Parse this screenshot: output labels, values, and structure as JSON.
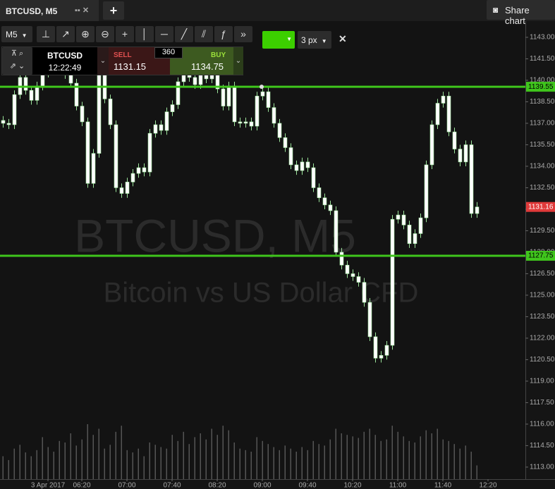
{
  "tab": {
    "title": "BTCUSD, M5",
    "add": "+",
    "share": "Share chart"
  },
  "toolbar": {
    "timeframe": "M5",
    "line_width": "3 px"
  },
  "ticket": {
    "symbol": "BTCUSD",
    "time": "12:22:49",
    "sell_label": "SELL",
    "sell_price": "1131.15",
    "spread": "360",
    "buy_label": "BUY",
    "buy_price": "1134.75"
  },
  "chart_data": {
    "type": "candlestick",
    "title": "BTCUSD, M5",
    "subtitle": "Bitcoin vs US Dollar CFD",
    "categories": [
      null,
      null,
      null,
      null,
      null,
      null,
      null,
      null,
      "3 Apr 2017",
      null,
      null,
      null,
      null,
      null,
      "06:20",
      null,
      null,
      null,
      null,
      null,
      null,
      null,
      "07:00",
      null,
      null,
      null,
      null,
      null,
      null,
      null,
      "07:40",
      null,
      null,
      null,
      null,
      null,
      null,
      null,
      "08:20",
      null,
      null,
      null,
      null,
      null,
      null,
      null,
      "09:00",
      null,
      null,
      null,
      null,
      null,
      null,
      null,
      "09:40",
      null,
      null,
      null,
      null,
      null,
      null,
      null,
      "10:20",
      null,
      null,
      null,
      null,
      null,
      null,
      null,
      "11:00",
      null,
      null,
      null,
      null,
      null,
      null,
      null,
      "11:40",
      null,
      null,
      null,
      null,
      null,
      null,
      null,
      "12:20"
    ],
    "open": [
      1137.2,
      1137.0,
      1136.9,
      1139.0,
      1140.2,
      1139.3,
      1138.6,
      1139.6,
      1140.5,
      1140.8,
      1141.2,
      1140.9,
      1140.4,
      1139.8,
      1138.2,
      1137.1,
      1132.8,
      1134.9,
      1140.6,
      1138.7,
      1136.9,
      1132.5,
      1132.1,
      1132.9,
      1133.5,
      1133.9,
      1133.6,
      1136.3,
      1136.9,
      1136.5,
      1137.8,
      1138.3,
      1139.9,
      1140.4,
      1140.2,
      1139.7,
      1140.6,
      1140.1,
      1140.8,
      1139.4,
      1138.2,
      1139.6,
      1137.1,
      1137.0,
      1137.1,
      1136.8,
      1138.9,
      1139.2,
      1138.1,
      1137.0,
      1136.0,
      1135.3,
      1134.1,
      1133.7,
      1134.3,
      1133.9,
      1132.5,
      1131.8,
      1131.3,
      1130.9,
      1128.0,
      1127.1,
      1126.5,
      1126.3,
      1125.9,
      1124.5,
      1122.1,
      1120.6,
      1120.8,
      1121.5,
      1130.3,
      1130.6,
      1129.9,
      1128.6,
      1129.3,
      1130.4,
      1134.1,
      1136.9,
      1138.4,
      1138.9,
      1136.4,
      1135.2,
      1134.3,
      1135.5,
      1130.7,
      null,
      null
    ],
    "high": [
      1137.5,
      1137.3,
      1139.3,
      1140.5,
      1140.5,
      1139.6,
      1139.9,
      1140.8,
      1141.1,
      1141.5,
      1141.5,
      1141.2,
      1140.7,
      1140.1,
      1138.5,
      1137.4,
      1135.2,
      1140.9,
      1140.9,
      1139.0,
      1137.2,
      1132.8,
      1133.2,
      1133.8,
      1134.2,
      1134.2,
      1136.6,
      1137.2,
      1137.2,
      1138.1,
      1138.6,
      1140.2,
      1140.7,
      1140.7,
      1140.5,
      1140.9,
      1140.9,
      1141.1,
      1141.1,
      1139.7,
      1139.9,
      1139.9,
      1137.4,
      1137.4,
      1137.4,
      1139.2,
      1139.5,
      1139.5,
      1138.4,
      1137.3,
      1136.3,
      1135.6,
      1134.4,
      1134.6,
      1134.6,
      1134.2,
      1132.8,
      1132.1,
      1131.6,
      1131.2,
      1128.3,
      1127.4,
      1126.8,
      1126.6,
      1126.2,
      1124.8,
      1122.4,
      1121.1,
      1121.8,
      1130.6,
      1130.9,
      1130.9,
      1130.2,
      1129.6,
      1130.7,
      1134.4,
      1137.2,
      1138.7,
      1139.2,
      1139.2,
      1136.7,
      1135.5,
      1135.8,
      1135.8,
      1131.5,
      null,
      null
    ],
    "low": [
      1136.7,
      1136.6,
      1136.6,
      1138.7,
      1139.0,
      1138.3,
      1138.3,
      1139.3,
      1140.2,
      1140.5,
      1140.6,
      1140.1,
      1139.5,
      1137.9,
      1136.8,
      1132.5,
      1132.5,
      1134.6,
      1138.4,
      1136.6,
      1132.2,
      1131.8,
      1131.8,
      1132.6,
      1133.2,
      1133.3,
      1133.3,
      1136.0,
      1136.2,
      1136.2,
      1137.5,
      1138.0,
      1139.6,
      1139.9,
      1139.4,
      1139.4,
      1139.8,
      1139.8,
      1139.1,
      1137.9,
      1137.9,
      1136.8,
      1136.7,
      1136.7,
      1136.5,
      1136.5,
      1138.6,
      1137.8,
      1136.7,
      1135.7,
      1135.0,
      1133.8,
      1133.4,
      1133.4,
      1133.6,
      1132.2,
      1131.5,
      1131.0,
      1130.6,
      1127.7,
      1126.8,
      1126.2,
      1126.0,
      1125.6,
      1124.2,
      1121.8,
      1120.3,
      1120.3,
      1120.5,
      1121.2,
      1130.0,
      1129.6,
      1128.3,
      1128.3,
      1129.0,
      1130.1,
      1133.8,
      1136.6,
      1138.1,
      1136.1,
      1134.9,
      1134.0,
      1134.0,
      1130.4,
      1130.4,
      null,
      null
    ],
    "close": [
      1137.0,
      1136.9,
      1139.0,
      1140.2,
      1139.3,
      1138.6,
      1139.6,
      1140.5,
      1140.8,
      1141.2,
      1140.9,
      1140.4,
      1139.8,
      1138.2,
      1137.1,
      1132.8,
      1134.9,
      1140.6,
      1138.7,
      1136.9,
      1132.5,
      1132.1,
      1132.9,
      1133.5,
      1133.9,
      1133.6,
      1136.3,
      1136.9,
      1136.5,
      1137.8,
      1138.3,
      1139.9,
      1140.4,
      1140.2,
      1139.7,
      1140.6,
      1140.1,
      1140.8,
      1139.4,
      1138.2,
      1139.6,
      1137.1,
      1137.0,
      1137.1,
      1136.8,
      1138.9,
      1139.2,
      1138.1,
      1137.0,
      1136.0,
      1135.3,
      1134.1,
      1133.7,
      1134.3,
      1133.9,
      1132.5,
      1131.8,
      1131.3,
      1130.9,
      1128.0,
      1127.1,
      1126.5,
      1126.3,
      1125.9,
      1124.5,
      1122.1,
      1120.6,
      1120.8,
      1121.5,
      1130.3,
      1130.6,
      1129.9,
      1128.6,
      1129.3,
      1130.4,
      1134.1,
      1136.9,
      1138.4,
      1138.9,
      1136.4,
      1135.2,
      1134.3,
      1135.5,
      1130.7,
      1131.16,
      null,
      null
    ],
    "volume": [
      30,
      25,
      40,
      45,
      35,
      30,
      38,
      55,
      42,
      36,
      50,
      48,
      60,
      44,
      52,
      72,
      58,
      66,
      40,
      45,
      62,
      70,
      38,
      35,
      40,
      30,
      48,
      45,
      42,
      40,
      58,
      50,
      62,
      46,
      55,
      60,
      52,
      66,
      58,
      70,
      64,
      48,
      40,
      38,
      36,
      55,
      50,
      46,
      42,
      38,
      44,
      40,
      36,
      42,
      38,
      50,
      46,
      44,
      52,
      66,
      60,
      58,
      56,
      54,
      62,
      66,
      58,
      50,
      52,
      70,
      62,
      56,
      50,
      48,
      56,
      64,
      60,
      66,
      52,
      50,
      46,
      40,
      44,
      36,
      18,
      null,
      null
    ],
    "candle_color": "#ffffff",
    "candle_edge": "#9be39a",
    "volume_color": "#555555",
    "ylim": [
      1112.16,
      1144.13
    ],
    "yticks": [
      {
        "value": 1113,
        "label": "1113.00"
      },
      {
        "value": 1114.5,
        "label": "1114.50"
      },
      {
        "value": 1116,
        "label": "1116.00"
      },
      {
        "value": 1117.5,
        "label": "1117.50"
      },
      {
        "value": 1119,
        "label": "1119.00"
      },
      {
        "value": 1120.5,
        "label": "1120.50"
      },
      {
        "value": 1122,
        "label": "1122.00"
      },
      {
        "value": 1123.5,
        "label": "1123.50"
      },
      {
        "value": 1125,
        "label": "1125.00"
      },
      {
        "value": 1126.5,
        "label": "1126.50"
      },
      {
        "value": 1128,
        "label": "1128.00"
      },
      {
        "value": 1129.5,
        "label": "1129.50"
      },
      {
        "value": 1131,
        "label": "1131.00"
      },
      {
        "value": 1132.5,
        "label": "1132.50"
      },
      {
        "value": 1134,
        "label": "1134.00"
      },
      {
        "value": 1135.5,
        "label": "1135.50"
      },
      {
        "value": 1137,
        "label": "1137.00"
      },
      {
        "value": 1138.5,
        "label": "1138.50"
      },
      {
        "value": 1140,
        "label": "1140.00"
      },
      {
        "value": 1141.5,
        "label": "1141.50"
      },
      {
        "value": 1143,
        "label": "1143.00"
      }
    ],
    "levels": [
      1139.55,
      1127.75
    ],
    "level_color": "#3fc51c",
    "last_price": 1131.16,
    "last_price_color": "#e03a3a",
    "grid": false
  }
}
